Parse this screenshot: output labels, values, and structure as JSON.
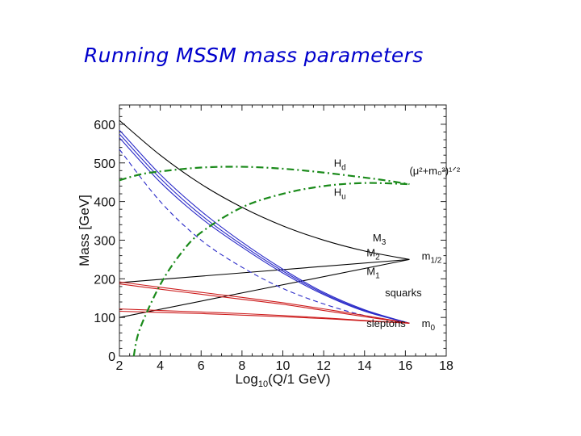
{
  "title": "Running MSSM mass parameters",
  "colors": {
    "title": "#0000cc",
    "black": "#000000",
    "blue": "#2a2ac8",
    "red": "#cc1a1a",
    "green": "#1a8a1a"
  },
  "chart_data": {
    "type": "line",
    "xlabel_main": "Log",
    "xlabel_sub": "10",
    "xlabel_rest": "(Q/1 GeV)",
    "ylabel": "Mass  [GeV]",
    "xlim": [
      2,
      18
    ],
    "ylim": [
      0,
      650
    ],
    "xticks": [
      "2",
      "4",
      "6",
      "8",
      "10",
      "12",
      "14",
      "16",
      "18"
    ],
    "yticks": [
      "0",
      "100",
      "200",
      "300",
      "400",
      "500",
      "600"
    ],
    "grid": false,
    "series": [
      {
        "name": "M3",
        "color": "#000000",
        "style": "solid",
        "x": [
          2,
          4,
          6,
          8,
          10,
          12,
          14,
          16.2
        ],
        "y": [
          610,
          520,
          445,
          385,
          337,
          300,
          272,
          250
        ]
      },
      {
        "name": "M2",
        "color": "#000000",
        "style": "solid",
        "x": [
          2,
          16.2
        ],
        "y": [
          190,
          250
        ]
      },
      {
        "name": "M1",
        "color": "#000000",
        "style": "solid",
        "x": [
          2,
          16.2
        ],
        "y": [
          100,
          250
        ]
      },
      {
        "name": "squarks",
        "color": "#2a2ac8",
        "style": "solid",
        "x": [
          2,
          4,
          6,
          8,
          10,
          12,
          14,
          16.2
        ],
        "y": [
          585,
          470,
          375,
          295,
          225,
          165,
          120,
          85
        ]
      },
      {
        "color": "#2a2ac8",
        "style": "solid",
        "x": [
          2,
          4,
          6,
          8,
          10,
          12,
          14,
          16.2
        ],
        "y": [
          575,
          460,
          365,
          288,
          220,
          162,
          118,
          85
        ]
      },
      {
        "color": "#2a2ac8",
        "style": "solid",
        "x": [
          2,
          4,
          6,
          8,
          10,
          12,
          14,
          16.2
        ],
        "y": [
          565,
          450,
          357,
          282,
          215,
          159,
          116,
          85
        ]
      },
      {
        "color": "#2a2ac8",
        "style": "dashed",
        "x": [
          2,
          4,
          6,
          8,
          10,
          12,
          14,
          16.2
        ],
        "y": [
          535,
          400,
          300,
          230,
          175,
          135,
          105,
          85
        ]
      },
      {
        "name": "sleptons",
        "color": "#cc1a1a",
        "style": "solid",
        "x": [
          2,
          4,
          6,
          8,
          10,
          12,
          14,
          16.2
        ],
        "y": [
          192,
          178,
          165,
          152,
          138,
          122,
          105,
          85
        ]
      },
      {
        "color": "#cc1a1a",
        "style": "solid",
        "x": [
          2,
          4,
          6,
          8,
          10,
          12,
          14,
          16.2
        ],
        "y": [
          187,
          173,
          160,
          147,
          134,
          118,
          102,
          85
        ]
      },
      {
        "color": "#cc1a1a",
        "style": "solid",
        "x": [
          2,
          4,
          6,
          8,
          10,
          12,
          14,
          16.2
        ],
        "y": [
          122,
          118,
          114,
          110,
          105,
          99,
          92,
          85
        ]
      },
      {
        "color": "#cc1a1a",
        "style": "solid",
        "x": [
          2,
          4,
          6,
          8,
          10,
          12,
          14,
          16.2
        ],
        "y": [
          116,
          113,
          110,
          106,
          102,
          97,
          91,
          85
        ]
      },
      {
        "name": "Hd",
        "color": "#1a8a1a",
        "style": "dashdot",
        "x": [
          2,
          3,
          4,
          6,
          8,
          10,
          12,
          14,
          15,
          16.2
        ],
        "y": [
          455,
          470,
          478,
          488,
          490,
          485,
          475,
          462,
          455,
          445
        ]
      },
      {
        "name": "Hu",
        "color": "#1a8a1a",
        "style": "dashdot",
        "x": [
          2.7,
          3,
          4,
          5,
          6,
          8,
          10,
          12,
          14,
          16.2
        ],
        "y": [
          0,
          70,
          185,
          265,
          320,
          385,
          420,
          440,
          448,
          445
        ]
      }
    ],
    "annotations": [
      {
        "text": "H",
        "sub": "d",
        "x": 12.5,
        "y": 490,
        "color": "#1a8a1a"
      },
      {
        "text": "H",
        "sub": "u",
        "x": 12.5,
        "y": 415,
        "color": "#1a8a1a"
      },
      {
        "text": "(μ²+m₀²)¹ᐟ²",
        "x": 16.2,
        "y": 470,
        "color": "#111111"
      },
      {
        "text": "M",
        "sub": "3",
        "x": 14.4,
        "y": 297,
        "color": "#111111"
      },
      {
        "text": "M",
        "sub": "2",
        "x": 14.1,
        "y": 258,
        "color": "#111111"
      },
      {
        "text": "M",
        "sub": "1",
        "x": 14.1,
        "y": 210,
        "color": "#111111"
      },
      {
        "text": "m",
        "sub": "1/2",
        "x": 16.8,
        "y": 250,
        "color": "#111111"
      },
      {
        "text": "squarks",
        "x": 15.0,
        "y": 155,
        "color": "#2a2ac8"
      },
      {
        "text": "sleptons",
        "x": 14.1,
        "y": 75,
        "color": "#cc1a1a"
      },
      {
        "text": "m",
        "sub": "0",
        "x": 16.8,
        "y": 75,
        "color": "#111111"
      }
    ]
  }
}
